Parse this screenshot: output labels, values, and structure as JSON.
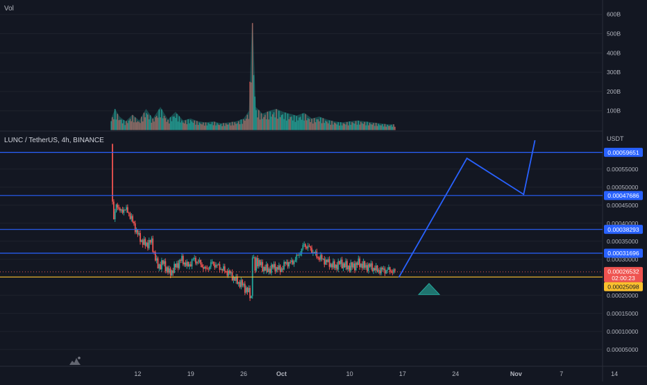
{
  "volume_pane": {
    "label": "Vol",
    "ticks": [
      "100B",
      "200B",
      "300B",
      "400B",
      "500B",
      "600B"
    ],
    "tick_values": [
      100,
      200,
      300,
      400,
      500,
      600
    ]
  },
  "price_pane": {
    "title": "LUNC / TetherUS, 4h, BINANCE",
    "currency": "USDT",
    "ticks": [
      "0.00005000",
      "0.00010000",
      "0.00015000",
      "0.00020000",
      "0.00025000",
      "0.00030000",
      "0.00035000",
      "0.00040000",
      "0.00045000",
      "0.00050000",
      "0.00055000"
    ],
    "tick_values": [
      5e-05,
      0.0001,
      0.00015,
      0.0002,
      0.00025,
      0.0003,
      0.00035,
      0.0004,
      0.00045,
      0.0005,
      0.00055
    ],
    "current_price": "0.00026532",
    "countdown": "02:00:23"
  },
  "x_axis": {
    "labels": [
      "12",
      "19",
      "26",
      "Oct",
      "10",
      "17",
      "24",
      "Nov",
      "7",
      "14"
    ]
  },
  "colors": {
    "up": "#26a69a",
    "down": "#ef5350",
    "levels": "#2962ff",
    "support": "#fbc02d",
    "projection": "#2962ff"
  },
  "chart_data": {
    "type": "candlestick",
    "title": "LUNC / TetherUS, 4h, BINANCE",
    "interval": "4h",
    "ylabel": "USDT",
    "ylim": [
      3e-05,
      0.000615
    ],
    "horizontal_levels": [
      {
        "value": 0.00059651,
        "label": "0.00059651"
      },
      {
        "value": 0.00047686,
        "label": "0.00047686"
      },
      {
        "value": 0.00038293,
        "label": "0.00038293"
      },
      {
        "value": 0.00031696,
        "label": "0.00031696"
      }
    ],
    "support_level": {
      "value": 0.00025098,
      "label": "0.00025098"
    },
    "last_price": 0.00026532,
    "price_path_days": [
      [
        7.5,
        0.00062
      ],
      [
        7.6,
        0.00049
      ],
      [
        7.8,
        0.0004
      ],
      [
        8.2,
        0.00046
      ],
      [
        8.6,
        0.00043
      ],
      [
        9.2,
        0.00044
      ],
      [
        9.8,
        0.00043
      ],
      [
        10.4,
        0.0004
      ],
      [
        11.2,
        0.00036
      ],
      [
        12.0,
        0.00034
      ],
      [
        12.8,
        0.00035
      ],
      [
        13.6,
        0.00028
      ],
      [
        14.4,
        0.00029
      ],
      [
        15.2,
        0.00026
      ],
      [
        16.0,
        0.00028
      ],
      [
        16.8,
        0.0003
      ],
      [
        17.6,
        0.00028
      ],
      [
        18.4,
        0.0003
      ],
      [
        19.2,
        0.00029
      ],
      [
        20.0,
        0.00027
      ],
      [
        20.8,
        0.00029
      ],
      [
        21.6,
        0.00028
      ],
      [
        22.4,
        0.00027
      ],
      [
        23.2,
        0.00026
      ],
      [
        24.0,
        0.00024
      ],
      [
        24.8,
        0.00023
      ],
      [
        25.6,
        0.00021
      ],
      [
        26.2,
        0.00019
      ],
      [
        26.6,
        0.0003
      ],
      [
        27.4,
        0.00028
      ],
      [
        28.2,
        0.00027
      ],
      [
        29.0,
        0.00028
      ],
      [
        29.8,
        0.00027
      ],
      [
        30.6,
        0.00029
      ],
      [
        31.4,
        0.00029
      ],
      [
        32.2,
        0.00031
      ],
      [
        33.0,
        0.00034
      ],
      [
        33.8,
        0.00033
      ],
      [
        34.6,
        0.00031
      ],
      [
        35.4,
        0.0003
      ],
      [
        36.2,
        0.00029
      ],
      [
        37.0,
        0.00028
      ],
      [
        37.8,
        0.00029
      ],
      [
        38.6,
        0.00028
      ],
      [
        39.4,
        0.00028
      ],
      [
        40.2,
        0.00029
      ],
      [
        41.0,
        0.00028
      ],
      [
        41.8,
        0.00028
      ],
      [
        42.6,
        0.00027
      ],
      [
        43.4,
        0.00027
      ],
      [
        44.2,
        0.00027
      ],
      [
        45.0,
        0.000265
      ]
    ],
    "volume_billions_path_days": [
      [
        7.5,
        60
      ],
      [
        8.0,
        110
      ],
      [
        8.6,
        70
      ],
      [
        9.4,
        45
      ],
      [
        10.3,
        80
      ],
      [
        11.2,
        50
      ],
      [
        12.1,
        110
      ],
      [
        13.0,
        60
      ],
      [
        14.0,
        120
      ],
      [
        15.0,
        55
      ],
      [
        16.0,
        95
      ],
      [
        17.0,
        50
      ],
      [
        18.0,
        60
      ],
      [
        19.0,
        45
      ],
      [
        20.0,
        40
      ],
      [
        21.0,
        45
      ],
      [
        22.0,
        35
      ],
      [
        23.0,
        40
      ],
      [
        24.0,
        45
      ],
      [
        25.0,
        60
      ],
      [
        25.7,
        100
      ],
      [
        26.15,
        610
      ],
      [
        26.6,
        120
      ],
      [
        27.5,
        85
      ],
      [
        28.4,
        100
      ],
      [
        29.3,
        110
      ],
      [
        30.2,
        95
      ],
      [
        31.1,
        85
      ],
      [
        32.0,
        75
      ],
      [
        33.0,
        90
      ],
      [
        34.0,
        60
      ],
      [
        35.0,
        70
      ],
      [
        36.0,
        55
      ],
      [
        37.0,
        45
      ],
      [
        38.0,
        40
      ],
      [
        39.0,
        45
      ],
      [
        40.0,
        50
      ],
      [
        41.0,
        45
      ],
      [
        42.0,
        40
      ],
      [
        43.0,
        35
      ],
      [
        44.0,
        30
      ],
      [
        45.0,
        30
      ]
    ],
    "projection_path": [
      [
        45.5,
        0.00025
      ],
      [
        54.5,
        0.00058
      ],
      [
        62.0,
        0.00048
      ],
      [
        63.5,
        0.00063
      ]
    ],
    "marker": {
      "day": 49.5,
      "value": 0.00021,
      "shape": "up-triangle"
    }
  }
}
